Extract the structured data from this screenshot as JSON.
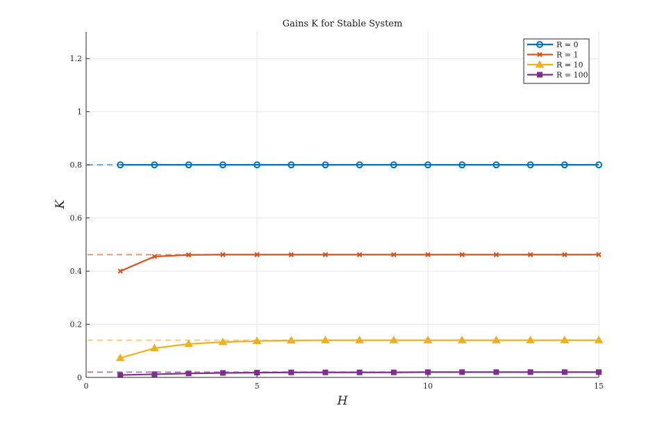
{
  "chart_data": {
    "type": "line",
    "title": "Gains K for Stable System",
    "xlabel": "H",
    "ylabel": "K",
    "xlim": [
      0,
      15
    ],
    "ylim": [
      0,
      1.3
    ],
    "xticks": [
      0,
      5,
      10,
      15
    ],
    "yticks": [
      0,
      0.2,
      0.4,
      0.6,
      0.8,
      1,
      1.2
    ],
    "grid": true,
    "legend_position": "top-right",
    "x": [
      1,
      2,
      3,
      4,
      5,
      6,
      7,
      8,
      9,
      10,
      11,
      12,
      13,
      14,
      15
    ],
    "series": [
      {
        "name": "R = 0",
        "color": "#0072BD",
        "marker": "circle",
        "values": [
          0.8,
          0.8,
          0.8,
          0.8,
          0.8,
          0.8,
          0.8,
          0.8,
          0.8,
          0.8,
          0.8,
          0.8,
          0.8,
          0.8,
          0.8
        ],
        "steady_state": 0.8
      },
      {
        "name": "R = 1",
        "color": "#D95319",
        "marker": "x",
        "values": [
          0.4,
          0.455,
          0.461,
          0.462,
          0.462,
          0.462,
          0.462,
          0.462,
          0.462,
          0.462,
          0.462,
          0.462,
          0.462,
          0.462,
          0.462
        ],
        "steady_state": 0.462
      },
      {
        "name": "R = 10",
        "color": "#EDB120",
        "marker": "triangle",
        "values": [
          0.073,
          0.11,
          0.126,
          0.133,
          0.137,
          0.139,
          0.14,
          0.14,
          0.14,
          0.14,
          0.14,
          0.14,
          0.14,
          0.14,
          0.14
        ],
        "steady_state": 0.14
      },
      {
        "name": "R = 100",
        "color": "#7E2F8E",
        "marker": "square",
        "values": [
          0.009,
          0.012,
          0.015,
          0.017,
          0.018,
          0.019,
          0.019,
          0.019,
          0.019,
          0.02,
          0.02,
          0.02,
          0.02,
          0.02,
          0.02
        ],
        "steady_state": 0.02
      }
    ]
  }
}
